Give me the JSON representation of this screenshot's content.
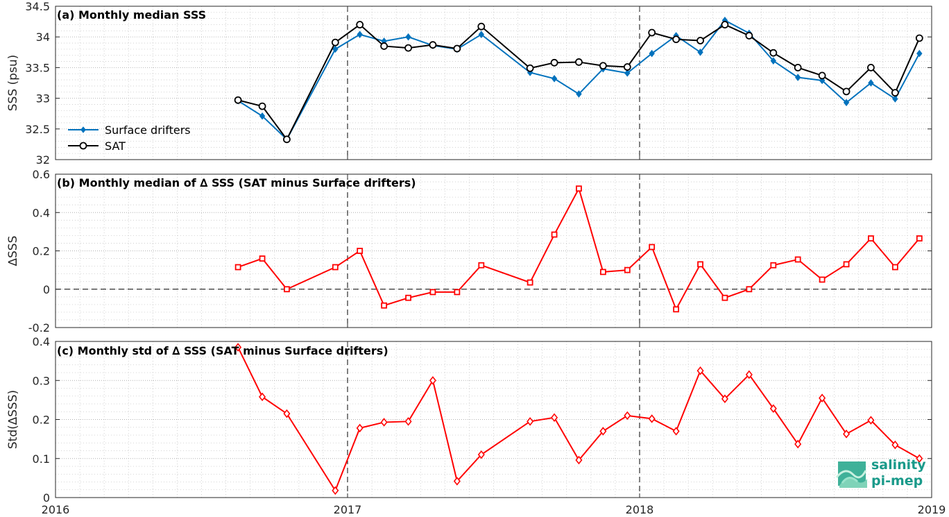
{
  "chart_data": [
    {
      "type": "line",
      "title": "(a) Monthly median SSS",
      "xlabel": "",
      "ylabel": "SSS (psu)",
      "xlim": [
        2016,
        2019
      ],
      "ylim": [
        32,
        34.5
      ],
      "xticks": [
        "2016",
        "2017",
        "2018",
        "2019"
      ],
      "yticks": [
        "32",
        "32.5",
        "33",
        "33.5",
        "34",
        "34.5"
      ],
      "grid": true,
      "legend_position": "left",
      "series": [
        {
          "name": "Surface drifters",
          "color": "#0072bd",
          "marker": "diamond",
          "x": [
            2016.625,
            2016.708,
            2016.792,
            2016.958,
            2017.042,
            2017.125,
            2017.208,
            2017.292,
            2017.375,
            2017.458,
            2017.625,
            2017.708,
            2017.792,
            2017.875,
            2017.958,
            2018.042,
            2018.125,
            2018.208,
            2018.292,
            2018.375,
            2018.458,
            2018.542,
            2018.625,
            2018.708,
            2018.792,
            2018.875,
            2018.958
          ],
          "y": [
            32.96,
            32.71,
            32.33,
            33.8,
            34.04,
            33.93,
            34,
            33.86,
            33.8,
            34.04,
            33.42,
            33.32,
            33.07,
            33.48,
            33.41,
            33.73,
            34.02,
            33.75,
            34.27,
            34.06,
            33.61,
            33.34,
            33.29,
            32.93,
            33.25,
            32.99,
            33.73
          ]
        },
        {
          "name": "SAT",
          "color": "#000000",
          "marker": "circle",
          "x": [
            2016.625,
            2016.708,
            2016.792,
            2016.958,
            2017.042,
            2017.125,
            2017.208,
            2017.292,
            2017.375,
            2017.458,
            2017.625,
            2017.708,
            2017.792,
            2017.875,
            2017.958,
            2018.042,
            2018.125,
            2018.208,
            2018.292,
            2018.375,
            2018.458,
            2018.542,
            2018.625,
            2018.708,
            2018.792,
            2018.875,
            2018.958
          ],
          "y": [
            32.97,
            32.87,
            32.33,
            33.91,
            34.2,
            33.85,
            33.82,
            33.87,
            33.81,
            34.17,
            33.49,
            33.58,
            33.59,
            33.53,
            33.51,
            34.07,
            33.96,
            33.94,
            34.2,
            34.02,
            33.74,
            33.5,
            33.37,
            33.11,
            33.5,
            33.09,
            33.98
          ]
        }
      ],
      "vlines": [
        2017,
        2018
      ]
    },
    {
      "type": "line",
      "title": "(b) Monthly median of ∆ SSS (SAT minus Surface drifters)",
      "xlabel": "",
      "ylabel": "∆SSS",
      "xlim": [
        2016,
        2019
      ],
      "ylim": [
        -0.2,
        0.6
      ],
      "xticks": [],
      "yticks": [
        "-0.2",
        "0",
        "0.2",
        "0.4",
        "0.6"
      ],
      "grid": true,
      "series": [
        {
          "color": "#ff0000",
          "marker": "square",
          "x": [
            2016.625,
            2016.708,
            2016.792,
            2016.958,
            2017.042,
            2017.125,
            2017.208,
            2017.292,
            2017.375,
            2017.458,
            2017.625,
            2017.708,
            2017.792,
            2017.875,
            2017.958,
            2018.042,
            2018.125,
            2018.208,
            2018.292,
            2018.375,
            2018.458,
            2018.542,
            2018.625,
            2018.708,
            2018.792,
            2018.875,
            2018.958
          ],
          "y": [
            0.115,
            0.16,
            0,
            0.115,
            0.2,
            -0.085,
            -0.045,
            -0.015,
            -0.015,
            0.125,
            0.035,
            0.285,
            0.525,
            0.09,
            0.1,
            0.22,
            -0.105,
            0.13,
            -0.045,
            0,
            0.125,
            0.155,
            0.05,
            0.13,
            0.265,
            0.115,
            0.265
          ]
        }
      ],
      "hline": 0,
      "vlines": [
        2017,
        2018
      ]
    },
    {
      "type": "line",
      "title": "(c) Monthly std of ∆ SSS (SAT minus Surface drifters)",
      "xlabel": "",
      "ylabel": "Std(∆SSS)",
      "xlim": [
        2016,
        2019
      ],
      "ylim": [
        0,
        0.4
      ],
      "xticks": [
        "2016",
        "2017",
        "2018",
        "2019"
      ],
      "yticks": [
        "0",
        "0.1",
        "0.2",
        "0.3",
        "0.4"
      ],
      "grid": true,
      "series": [
        {
          "color": "#ff0000",
          "marker": "diamond",
          "x": [
            2016.625,
            2016.708,
            2016.792,
            2016.958,
            2017.042,
            2017.125,
            2017.208,
            2017.292,
            2017.375,
            2017.458,
            2017.625,
            2017.708,
            2017.792,
            2017.875,
            2017.958,
            2018.042,
            2018.125,
            2018.208,
            2018.292,
            2018.375,
            2018.458,
            2018.542,
            2018.625,
            2018.708,
            2018.792,
            2018.875,
            2018.958
          ],
          "y": [
            0.385,
            0.258,
            0.215,
            0.018,
            0.178,
            0.193,
            0.195,
            0.3,
            0.042,
            0.11,
            0.195,
            0.205,
            0.096,
            0.17,
            0.21,
            0.202,
            0.17,
            0.325,
            0.253,
            0.315,
            0.228,
            0.137,
            0.255,
            0.163,
            0.198,
            0.135,
            0.1
          ]
        }
      ],
      "vlines": [
        2017,
        2018
      ]
    }
  ],
  "logo": {
    "line1": "salinity",
    "line2": "pi-mep",
    "color": "#1a9a8a"
  }
}
